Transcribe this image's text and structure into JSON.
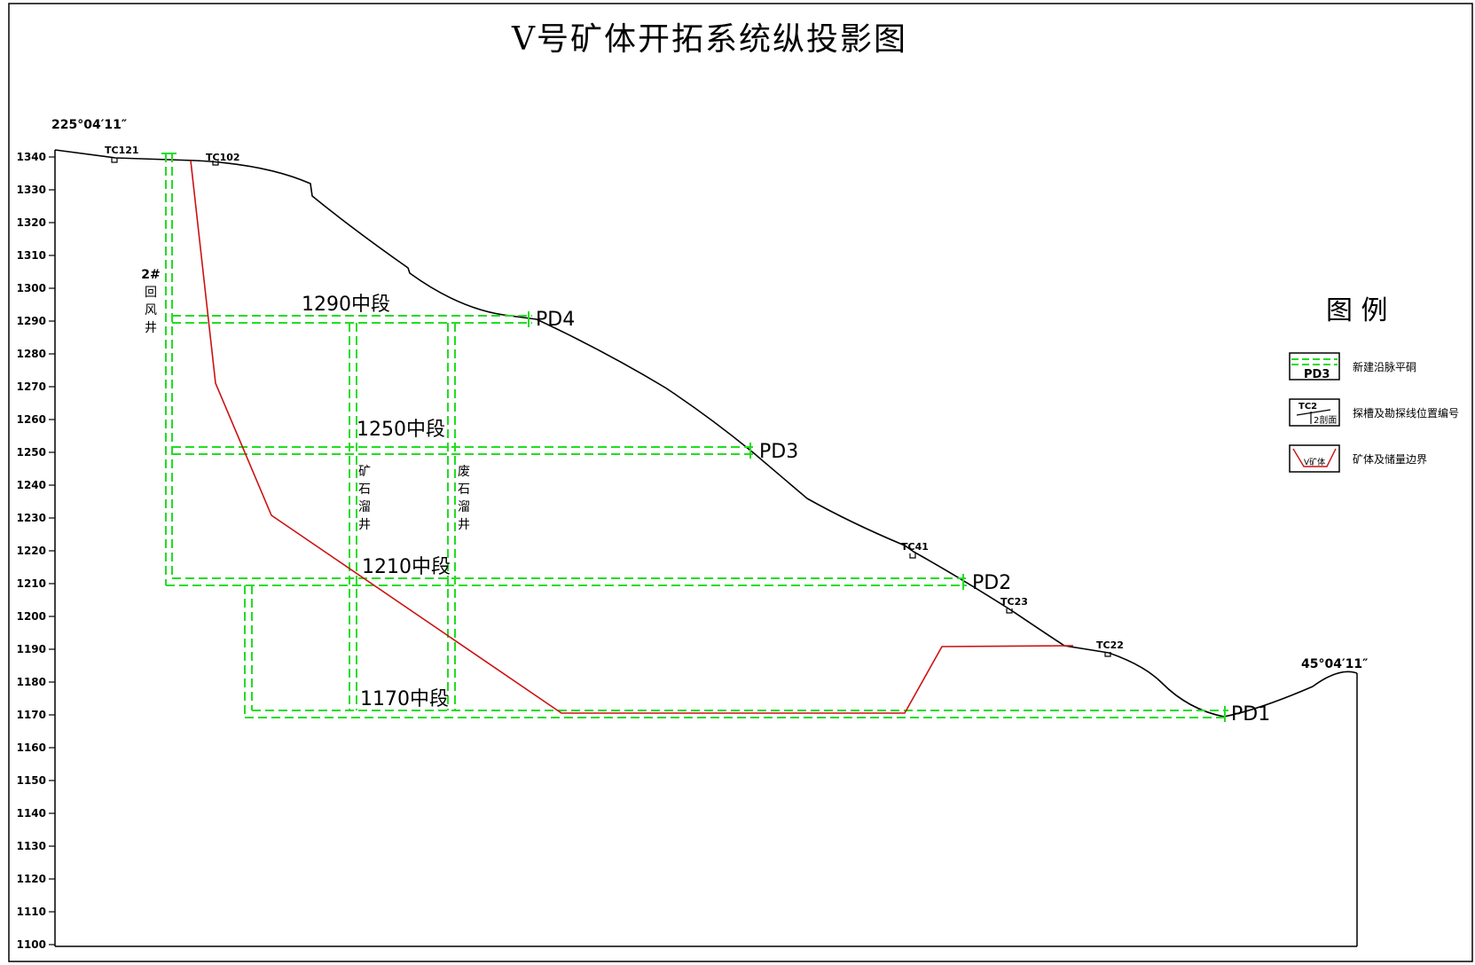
{
  "title": "V号矿体开拓系统纵投影图",
  "corner_labels": {
    "left": "225°04′11″",
    "right": "45°04′11″"
  },
  "elevation_ticks": [
    "1340",
    "1330",
    "1320",
    "1310",
    "1300",
    "1290",
    "1280",
    "1270",
    "1260",
    "1250",
    "1240",
    "1230",
    "1220",
    "1210",
    "1200",
    "1190",
    "1180",
    "1170",
    "1160",
    "1150",
    "1140",
    "1130",
    "1120",
    "1110",
    "1100"
  ],
  "trenches": [
    "TC121",
    "TC102",
    "TC41",
    "TC23",
    "TC22"
  ],
  "adits": [
    "PD4",
    "PD3",
    "PD2",
    "PD1"
  ],
  "levels": [
    "1290中段",
    "1250中段",
    "1210中段",
    "1170中段"
  ],
  "shafts": {
    "return_air": "2#回风井",
    "ore_pass": "矿石溜井",
    "waste_pass": "废石溜井"
  },
  "legend": {
    "title": "图 例",
    "items": [
      {
        "label": "新建沿脉平硐",
        "symbol_text": "PD3"
      },
      {
        "label": "探槽及勘探线位置编号",
        "symbol_text_top": "TC2",
        "symbol_text_bottom": "2剖面"
      },
      {
        "label": "矿体及储量边界",
        "symbol_text": "V矿体"
      }
    ]
  },
  "colors": {
    "terrain": "#000000",
    "workings": "#22dd22",
    "orebody": "#cc1111"
  }
}
